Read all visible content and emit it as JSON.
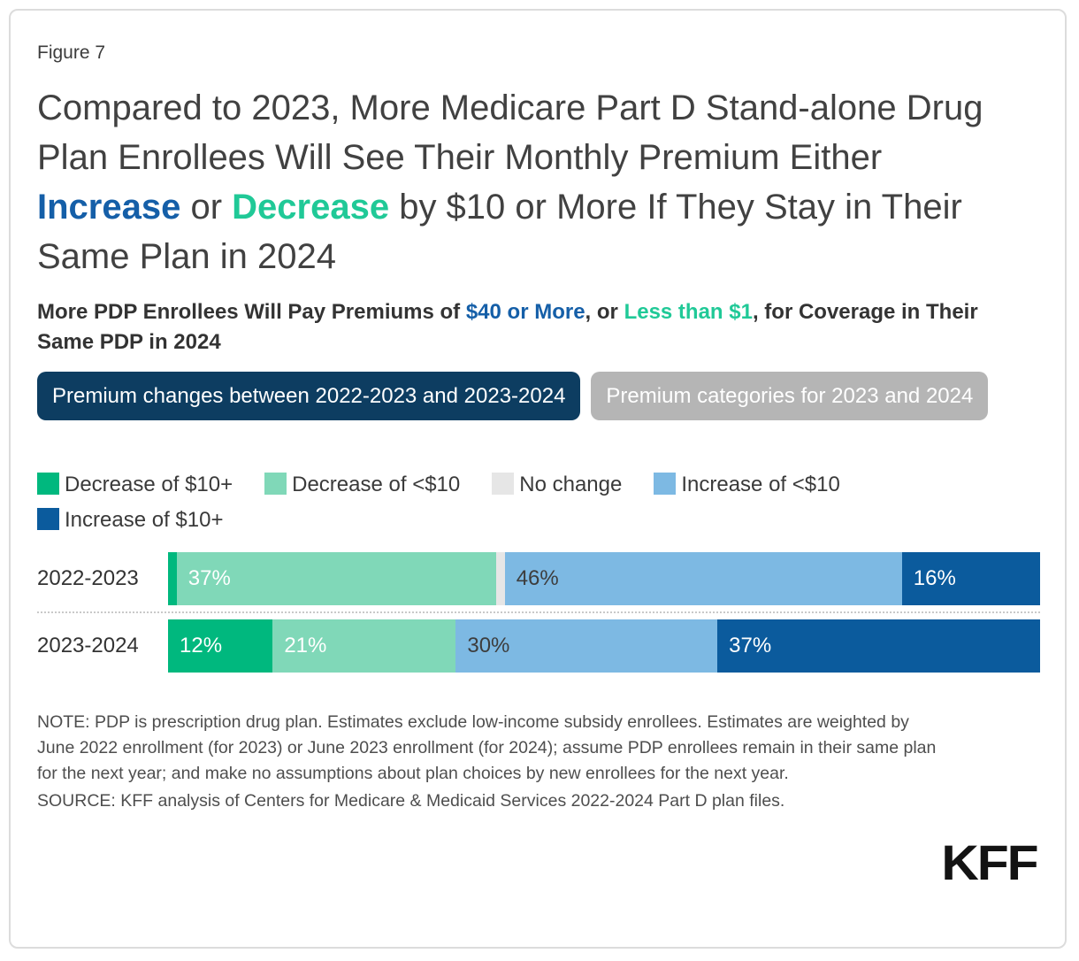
{
  "figure_label": "Figure 7",
  "title": {
    "part1": "Compared to 2023, More Medicare Part D Stand-alone Drug Plan Enrollees Will See Their Monthly Premium Either ",
    "increase": "Increase",
    "part2": " or ",
    "decrease": "Decrease",
    "part3": " by $10 or More If They Stay in Their Same Plan in 2024"
  },
  "subtitle": {
    "part1": "More PDP Enrollees Will Pay Premiums of ",
    "blue": "$40 or More",
    "part2": ", or ",
    "green": "Less than $1",
    "part3": ", for Coverage in Their Same PDP in 2024"
  },
  "colors": {
    "accent_blue": "#155fa8",
    "accent_green": "#20c997",
    "tab_active_bg": "#0d3d61",
    "tab_inactive_bg": "#b5b5b5",
    "divider": "#c9c9c9"
  },
  "tabs": [
    {
      "label": "Premium changes between 2022-2023 and 2023-2024",
      "active": true
    },
    {
      "label": "Premium categories for 2023 and 2024",
      "active": false
    }
  ],
  "chart_data": {
    "type": "bar",
    "orientation": "horizontal",
    "stacked": true,
    "unit": "%",
    "xlim": [
      0,
      100
    ],
    "legend_position": "top",
    "categories": [
      "2022-2023",
      "2023-2024"
    ],
    "series": [
      {
        "name": "Decrease of $10+",
        "color": "#00b87e",
        "values": [
          1,
          12
        ]
      },
      {
        "name": "Decrease of <$10",
        "color": "#80d8b8",
        "values": [
          37,
          21
        ]
      },
      {
        "name": "No change",
        "color": "#e6e6e6",
        "values": [
          1,
          0
        ]
      },
      {
        "name": "Increase of <$10",
        "color": "#7db9e3",
        "values": [
          46,
          30
        ]
      },
      {
        "name": "Increase of $10+",
        "color": "#0b5b9d",
        "values": [
          16,
          37
        ]
      }
    ],
    "bar_labels": [
      [
        {
          "text": ""
        },
        {
          "text": "37%",
          "color": "#ffffff"
        },
        {
          "text": ""
        },
        {
          "text": "46%",
          "color": "#3d3d3d"
        },
        {
          "text": "16%",
          "color": "#ffffff"
        }
      ],
      [
        {
          "text": "12%",
          "color": "#ffffff"
        },
        {
          "text": "21%",
          "color": "#ffffff"
        },
        {
          "text": ""
        },
        {
          "text": "30%",
          "color": "#3d3d3d"
        },
        {
          "text": "37%",
          "color": "#ffffff"
        }
      ]
    ]
  },
  "note": "NOTE: PDP is prescription drug plan. Estimates exclude low-income subsidy enrollees. Estimates are weighted by June 2022 enrollment (for 2023) or June 2023 enrollment (for 2024); assume PDP enrollees remain in their same plan for the next year; and make no assumptions about plan choices by new enrollees for the next year.",
  "source": "SOURCE: KFF analysis of Centers for Medicare & Medicaid Services 2022-2024 Part D plan files.",
  "logo": "KFF"
}
